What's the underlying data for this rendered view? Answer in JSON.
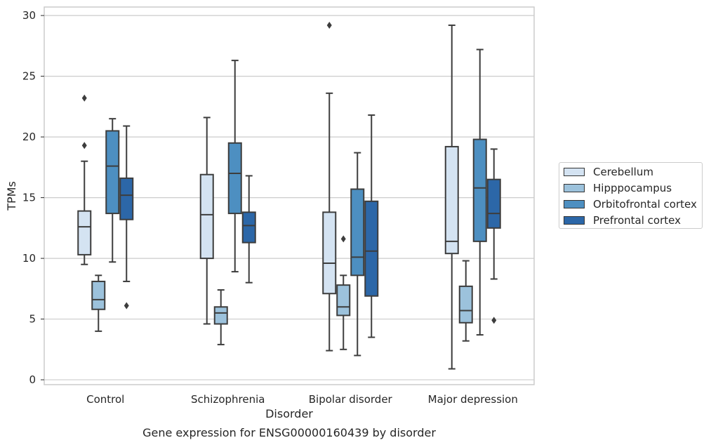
{
  "chart_data": {
    "type": "boxplot",
    "title": "",
    "caption": "Gene expression for ENSG00000160439 by disorder",
    "xlabel": "Disorder",
    "ylabel": "TPMs",
    "ylim": [
      -0.4,
      30.7
    ],
    "yticks": [
      0,
      5,
      10,
      15,
      20,
      25,
      30
    ],
    "grid": "horizontal",
    "legend_position": "right",
    "categories": [
      "Control",
      "Schizophrenia",
      "Bipolar disorder",
      "Major depression"
    ],
    "series": [
      {
        "name": "Cerebellum",
        "color": "#d4e3f2",
        "boxes": [
          {
            "whislo": 9.5,
            "q1": 10.3,
            "med": 12.6,
            "q3": 13.9,
            "whishi": 18.0,
            "fliers": [
              19.3,
              23.2
            ]
          },
          {
            "whislo": 4.6,
            "q1": 10.0,
            "med": 13.6,
            "q3": 16.9,
            "whishi": 21.6,
            "fliers": []
          },
          {
            "whislo": 2.4,
            "q1": 7.1,
            "med": 9.6,
            "q3": 13.8,
            "whishi": 23.6,
            "fliers": [
              29.2
            ]
          },
          {
            "whislo": 0.9,
            "q1": 10.4,
            "med": 11.4,
            "q3": 19.2,
            "whishi": 29.2,
            "fliers": []
          }
        ]
      },
      {
        "name": "Hipppocampus",
        "color": "#9cc2dc",
        "boxes": [
          {
            "whislo": 4.0,
            "q1": 5.8,
            "med": 6.6,
            "q3": 8.1,
            "whishi": 8.6,
            "fliers": []
          },
          {
            "whislo": 2.9,
            "q1": 4.6,
            "med": 5.5,
            "q3": 6.0,
            "whishi": 7.4,
            "fliers": []
          },
          {
            "whislo": 2.5,
            "q1": 5.3,
            "med": 6.0,
            "q3": 7.8,
            "whishi": 8.6,
            "fliers": [
              11.6
            ]
          },
          {
            "whislo": 3.2,
            "q1": 4.7,
            "med": 5.7,
            "q3": 7.7,
            "whishi": 9.8,
            "fliers": []
          }
        ]
      },
      {
        "name": "Orbitofrontal cortex",
        "color": "#4d8fc1",
        "boxes": [
          {
            "whislo": 9.7,
            "q1": 13.7,
            "med": 17.6,
            "q3": 20.5,
            "whishi": 21.5,
            "fliers": []
          },
          {
            "whislo": 8.9,
            "q1": 13.7,
            "med": 17.0,
            "q3": 19.5,
            "whishi": 26.3,
            "fliers": []
          },
          {
            "whislo": 2.0,
            "q1": 8.6,
            "med": 10.1,
            "q3": 15.7,
            "whishi": 18.7,
            "fliers": []
          },
          {
            "whislo": 3.7,
            "q1": 11.4,
            "med": 15.8,
            "q3": 19.8,
            "whishi": 27.2,
            "fliers": []
          }
        ]
      },
      {
        "name": "Prefrontal cortex",
        "color": "#2c67a8",
        "boxes": [
          {
            "whislo": 8.1,
            "q1": 13.2,
            "med": 15.2,
            "q3": 16.6,
            "whishi": 20.9,
            "fliers": [
              6.1
            ]
          },
          {
            "whislo": 8.0,
            "q1": 11.3,
            "med": 12.7,
            "q3": 13.8,
            "whishi": 16.8,
            "fliers": []
          },
          {
            "whislo": 3.5,
            "q1": 6.9,
            "med": 10.6,
            "q3": 14.7,
            "whishi": 21.8,
            "fliers": []
          },
          {
            "whislo": 8.3,
            "q1": 12.5,
            "med": 13.7,
            "q3": 16.5,
            "whishi": 19.0,
            "fliers": [
              4.9
            ]
          }
        ]
      }
    ]
  }
}
